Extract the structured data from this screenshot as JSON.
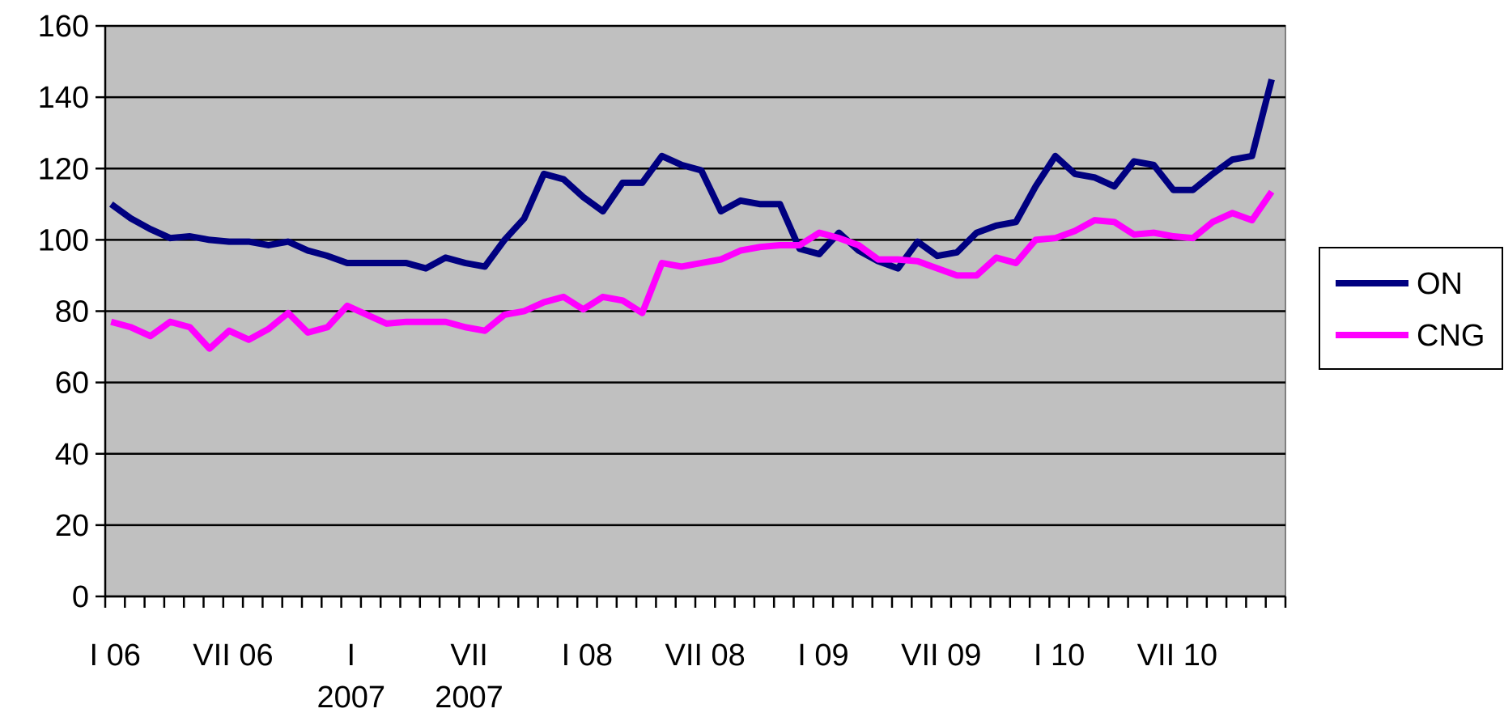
{
  "chart_data": {
    "type": "line",
    "categories": [
      "I 06",
      null,
      null,
      null,
      null,
      null,
      "VII 06",
      null,
      null,
      null,
      null,
      null,
      "I\n2007",
      null,
      null,
      null,
      null,
      null,
      "VII\n2007",
      null,
      null,
      null,
      null,
      null,
      "I 08",
      null,
      null,
      null,
      null,
      null,
      "VII 08",
      null,
      null,
      null,
      null,
      null,
      "I 09",
      null,
      null,
      null,
      null,
      null,
      "VII 09",
      null,
      null,
      null,
      null,
      null,
      "I 10",
      null,
      null,
      null,
      null,
      null,
      "VII 10",
      null,
      null,
      null,
      null,
      null
    ],
    "series": [
      {
        "name": "ON",
        "color": "#000080",
        "values": [
          110,
          106,
          103,
          100.5,
          101,
          100,
          99.5,
          99.5,
          98.5,
          99.5,
          97,
          95.5,
          93.5,
          93.5,
          93.5,
          93.5,
          92,
          95,
          93.5,
          92.5,
          100,
          106,
          118.5,
          117,
          112,
          108,
          116,
          116,
          123.5,
          121,
          119.5,
          108,
          111,
          110,
          110,
          97.5,
          96,
          102,
          97,
          94,
          92,
          99.5,
          95.5,
          96.5,
          102,
          104,
          105,
          115,
          123.5,
          118.5,
          117.5,
          115,
          122,
          121,
          114,
          114,
          118.5,
          122.5,
          123.5,
          145
        ]
      },
      {
        "name": "CNG",
        "color": "#ff00ff",
        "values": [
          77,
          75.5,
          73,
          77,
          75.5,
          69.5,
          74.5,
          72,
          75,
          79.5,
          74,
          75.5,
          81.5,
          79,
          76.5,
          77,
          77,
          77,
          75.5,
          74.5,
          79,
          80,
          82.5,
          84,
          80.5,
          84,
          83,
          79.5,
          93.5,
          92.5,
          93.5,
          94.5,
          97,
          98,
          98.5,
          98.5,
          102,
          100.5,
          98.5,
          94.5,
          94.5,
          94,
          92,
          90,
          90,
          95,
          93.5,
          100,
          100.5,
          102.5,
          105.5,
          105,
          101.5,
          102,
          101,
          100.5,
          105,
          107.5,
          105.5,
          113.5
        ]
      }
    ],
    "ylim": [
      0,
      160
    ],
    "yticks": [
      0,
      20,
      40,
      60,
      80,
      100,
      120,
      140,
      160
    ],
    "grid": true,
    "legend": "right",
    "plot_background": "#c0c0c0"
  }
}
